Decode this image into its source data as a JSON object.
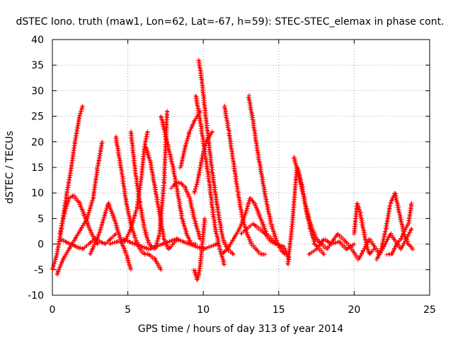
{
  "chart_data": {
    "type": "scatter",
    "title": "dSTEC Iono. truth (maw1, Lon=62, Lat=-67, h=59): STEC-STEC_elemax in phase cont.",
    "xlabel": "GPS time / hours of day 313 of year 2014",
    "ylabel": "dSTEC  / TECUs",
    "xlim": [
      0,
      25
    ],
    "ylim": [
      -10,
      40
    ],
    "xticks": [
      0,
      5,
      10,
      15,
      20,
      25
    ],
    "yticks": [
      -10,
      -5,
      0,
      5,
      10,
      15,
      20,
      25,
      30,
      35,
      40
    ],
    "grid": true,
    "marker": "+",
    "color": "#ff0000",
    "series": [
      {
        "x": [
          0.0,
          0.3,
          0.6,
          0.9,
          1.2,
          1.5,
          1.8,
          2.0
        ],
        "y": [
          -5,
          -2,
          3,
          9,
          14,
          20,
          25,
          27
        ]
      },
      {
        "x": [
          0.3,
          0.7,
          1.1,
          1.5,
          1.9,
          2.3,
          2.7,
          3.0,
          3.3
        ],
        "y": [
          -6,
          -3,
          -1,
          1,
          3,
          5,
          9,
          15,
          20
        ]
      },
      {
        "x": [
          0.5,
          0.8,
          1.1,
          1.4,
          1.8,
          2.2,
          2.6,
          3.0
        ],
        "y": [
          2,
          6,
          9,
          9.5,
          8,
          5,
          2,
          0
        ]
      },
      {
        "x": [
          2.5,
          2.8,
          3.1,
          3.4,
          3.7,
          4.1,
          4.5,
          4.9,
          5.2
        ],
        "y": [
          -2,
          0,
          2,
          5,
          8,
          5,
          1,
          -2,
          -5
        ]
      },
      {
        "x": [
          3.8,
          4.3,
          4.8,
          5.2,
          5.6,
          5.9,
          6.1,
          6.3
        ],
        "y": [
          0,
          0.5,
          0.5,
          3,
          7,
          13,
          19,
          22
        ]
      },
      {
        "x": [
          4.2,
          4.6,
          4.9,
          5.2,
          5.5,
          5.8,
          6.1,
          6.4,
          6.8,
          7.2
        ],
        "y": [
          21,
          14,
          8,
          4,
          1,
          -1,
          -2,
          -2,
          -3,
          -5
        ]
      },
      {
        "x": [
          5.2,
          5.5,
          5.8,
          6.1,
          6.4,
          6.8,
          7.1,
          7.4,
          7.6
        ],
        "y": [
          22,
          14,
          8,
          3,
          0,
          -1,
          2,
          12,
          26
        ]
      },
      {
        "x": [
          6.2,
          6.5,
          6.8,
          7.1,
          7.4,
          7.7,
          8.0,
          8.3
        ],
        "y": [
          19,
          16,
          11,
          6,
          1,
          -1,
          0,
          1
        ]
      },
      {
        "x": [
          7.2,
          7.6,
          8.0,
          8.3,
          8.6,
          8.9,
          9.2,
          9.5
        ],
        "y": [
          25,
          20,
          15,
          10,
          5,
          2,
          0,
          0
        ]
      },
      {
        "x": [
          7.9,
          8.2,
          8.5,
          8.8,
          9.1,
          9.4,
          9.6,
          9.8
        ],
        "y": [
          11,
          12,
          12,
          11,
          9,
          5,
          3,
          1
        ]
      },
      {
        "x": [
          8.5,
          8.8,
          9.1,
          9.4,
          9.6,
          9.8
        ],
        "y": [
          15,
          19,
          22,
          24,
          25,
          26
        ]
      },
      {
        "x": [
          9.4,
          9.5,
          9.6,
          9.7,
          9.8,
          9.9,
          10.0,
          10.1
        ],
        "y": [
          -5,
          -6,
          -7,
          -6,
          -4,
          -1,
          2,
          5
        ]
      },
      {
        "x": [
          9.7,
          9.9,
          10.2,
          10.6,
          11.0,
          11.3,
          11.6,
          12.0
        ],
        "y": [
          36,
          32,
          24,
          14,
          6,
          1,
          -1,
          -2
        ]
      },
      {
        "x": [
          9.5,
          9.8,
          10.1,
          10.4,
          10.6,
          10.8,
          11.1,
          11.4
        ],
        "y": [
          29,
          24,
          18,
          12,
          7,
          3,
          -1,
          -4
        ]
      },
      {
        "x": [
          9.4,
          9.6,
          9.8,
          10.0,
          10.2,
          10.4,
          10.6
        ],
        "y": [
          10,
          12,
          15,
          18,
          20,
          21,
          22
        ]
      },
      {
        "x": [
          11.4,
          11.7,
          12.0,
          12.3,
          12.6,
          12.9,
          13.2,
          13.5,
          13.8,
          14.1
        ],
        "y": [
          27,
          22,
          16,
          10,
          5,
          2,
          0,
          -1,
          -2,
          -2
        ]
      },
      {
        "x": [
          11.2,
          11.6,
          12.0,
          12.4,
          12.8,
          13.1,
          13.4,
          13.8,
          14.2,
          14.8
        ],
        "y": [
          -2,
          -1,
          1,
          3,
          6,
          9,
          8,
          5,
          2,
          0
        ]
      },
      {
        "x": [
          13.0,
          13.3,
          13.6,
          13.9,
          14.2,
          14.5,
          14.8,
          15.1,
          15.4
        ],
        "y": [
          29,
          24,
          18,
          13,
          8,
          4,
          1,
          -1,
          -2
        ]
      },
      {
        "x": [
          12.5,
          12.9,
          13.3,
          13.7,
          14.1,
          14.5,
          14.9,
          15.3,
          15.7
        ],
        "y": [
          2,
          3,
          4,
          3,
          2,
          0.5,
          0,
          -0.5,
          -3
        ]
      },
      {
        "x": [
          15.6,
          15.9,
          16.2,
          16.5,
          16.8,
          17.1,
          17.4,
          17.7,
          18.0
        ],
        "y": [
          -4,
          4,
          15,
          12,
          7,
          3,
          0,
          -1,
          -2
        ]
      },
      {
        "x": [
          16.0,
          16.3,
          16.6,
          16.9,
          17.2,
          17.5,
          17.8
        ],
        "y": [
          17,
          14,
          10,
          6,
          3,
          1,
          0
        ]
      },
      {
        "x": [
          17.0,
          17.5,
          18.0,
          18.5,
          19.0,
          19.5,
          20.0
        ],
        "y": [
          -2,
          -1,
          1,
          0,
          0.5,
          -1,
          0
        ]
      },
      {
        "x": [
          20.0,
          20.2,
          20.4,
          20.6,
          20.8,
          21.0,
          21.3
        ],
        "y": [
          2,
          8,
          6,
          3,
          0,
          -2,
          -1
        ]
      },
      {
        "x": [
          21.5,
          21.8,
          22.1,
          22.4,
          22.7,
          23.0,
          23.3,
          23.6,
          23.9
        ],
        "y": [
          -3,
          -1,
          3,
          8,
          10,
          6,
          2,
          0,
          -1
        ]
      },
      {
        "x": [
          22.2,
          22.5,
          22.8,
          23.1,
          23.4,
          23.6,
          23.8
        ],
        "y": [
          -2,
          -2,
          0,
          1,
          3,
          4,
          8
        ]
      },
      {
        "x": [
          17.5,
          18.2,
          18.9,
          19.6,
          20.3,
          21.0,
          21.7,
          22.4,
          23.1,
          23.8
        ],
        "y": [
          1,
          -1,
          2,
          0,
          -3,
          1,
          -2,
          2,
          -1,
          3
        ]
      },
      {
        "x": [
          0.5,
          1.2,
          2.0,
          2.8,
          3.5,
          4.2
        ],
        "y": [
          1,
          0,
          -1,
          1,
          0,
          2
        ]
      },
      {
        "x": [
          4.6,
          5.5,
          6.4,
          7.3,
          8.2,
          9.1,
          10.0,
          10.9
        ],
        "y": [
          1,
          0,
          -1,
          0,
          1,
          0,
          -1,
          0
        ]
      }
    ]
  }
}
